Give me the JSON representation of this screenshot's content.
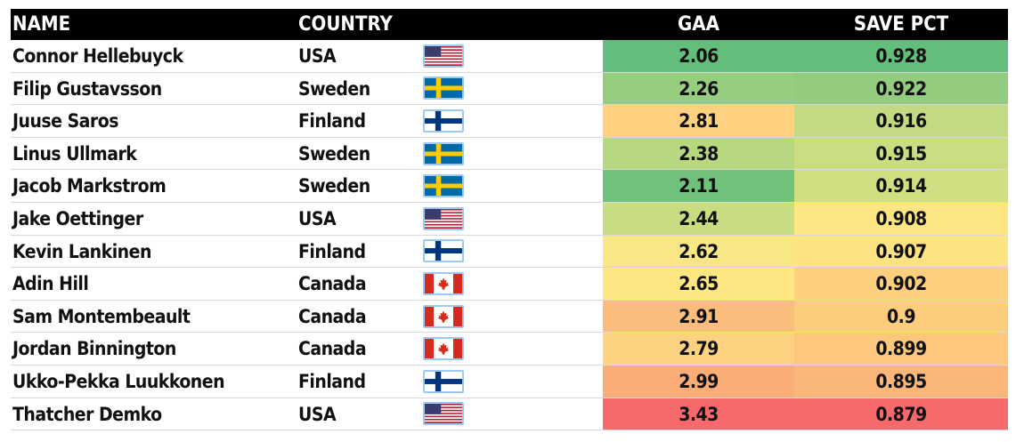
{
  "header": {
    "name": "NAME",
    "country": "COUNTRY",
    "gaa": "GAA",
    "save_pct": "SAVE PCT"
  },
  "colors": {
    "header_bg": "#000000",
    "header_text": "#ffffff"
  },
  "rows": [
    {
      "name": "Connor Hellebuyck",
      "country": "USA",
      "flag": "usa-flag-icon",
      "gaa": "2.06",
      "save_pct": "0.928",
      "gaa_color": "#63be7b",
      "sv_color": "#63be7b"
    },
    {
      "name": "Filip Gustavsson",
      "country": "Sweden",
      "flag": "sweden-flag-icon",
      "gaa": "2.26",
      "save_pct": "0.922",
      "gaa_color": "#96cd7e",
      "sv_color": "#93cc7e"
    },
    {
      "name": "Juuse Saros",
      "country": "Finland",
      "flag": "finland-flag-icon",
      "gaa": "2.81",
      "save_pct": "0.916",
      "gaa_color": "#fdd17f",
      "sv_color": "#c2da81"
    },
    {
      "name": "Linus Ullmark",
      "country": "Sweden",
      "flag": "sweden-flag-icon",
      "gaa": "2.38",
      "save_pct": "0.915",
      "gaa_color": "#b7d780",
      "sv_color": "#cadd82"
    },
    {
      "name": "Jacob Markstrom",
      "country": "Sweden",
      "flag": "sweden-flag-icon",
      "gaa": "2.11",
      "save_pct": "0.914",
      "gaa_color": "#6fc17b",
      "sv_color": "#d1df82"
    },
    {
      "name": "Jake Oettinger",
      "country": "USA",
      "flag": "usa-flag-icon",
      "gaa": "2.44",
      "save_pct": "0.908",
      "gaa_color": "#c8dc82",
      "sv_color": "#fee683"
    },
    {
      "name": "Kevin Lankinen",
      "country": "Finland",
      "flag": "finland-flag-icon",
      "gaa": "2.62",
      "save_pct": "0.907",
      "gaa_color": "#f8e784",
      "sv_color": "#fee382"
    },
    {
      "name": "Adin Hill",
      "country": "Canada",
      "flag": "canada-flag-icon",
      "gaa": "2.65",
      "save_pct": "0.902",
      "gaa_color": "#fee683",
      "sv_color": "#fdcf7e"
    },
    {
      "name": "Sam Montembeault",
      "country": "Canada",
      "flag": "canada-flag-icon",
      "gaa": "2.91",
      "save_pct": "0.9",
      "gaa_color": "#fbbd7b",
      "sv_color": "#fdcd7e"
    },
    {
      "name": "Jordan Binnington",
      "country": "Canada",
      "flag": "canada-flag-icon",
      "gaa": "2.79",
      "save_pct": "0.899",
      "gaa_color": "#fdd280",
      "sv_color": "#fdc87d"
    },
    {
      "name": "Ukko-Pekka Luukkonen",
      "country": "Finland",
      "flag": "finland-flag-icon",
      "gaa": "2.99",
      "save_pct": "0.895",
      "gaa_color": "#faad77",
      "sv_color": "#fbb679"
    },
    {
      "name": "Thatcher Demko",
      "country": "USA",
      "flag": "usa-flag-icon",
      "gaa": "3.43",
      "save_pct": "0.879",
      "gaa_color": "#f8696b",
      "sv_color": "#f8696b"
    }
  ]
}
